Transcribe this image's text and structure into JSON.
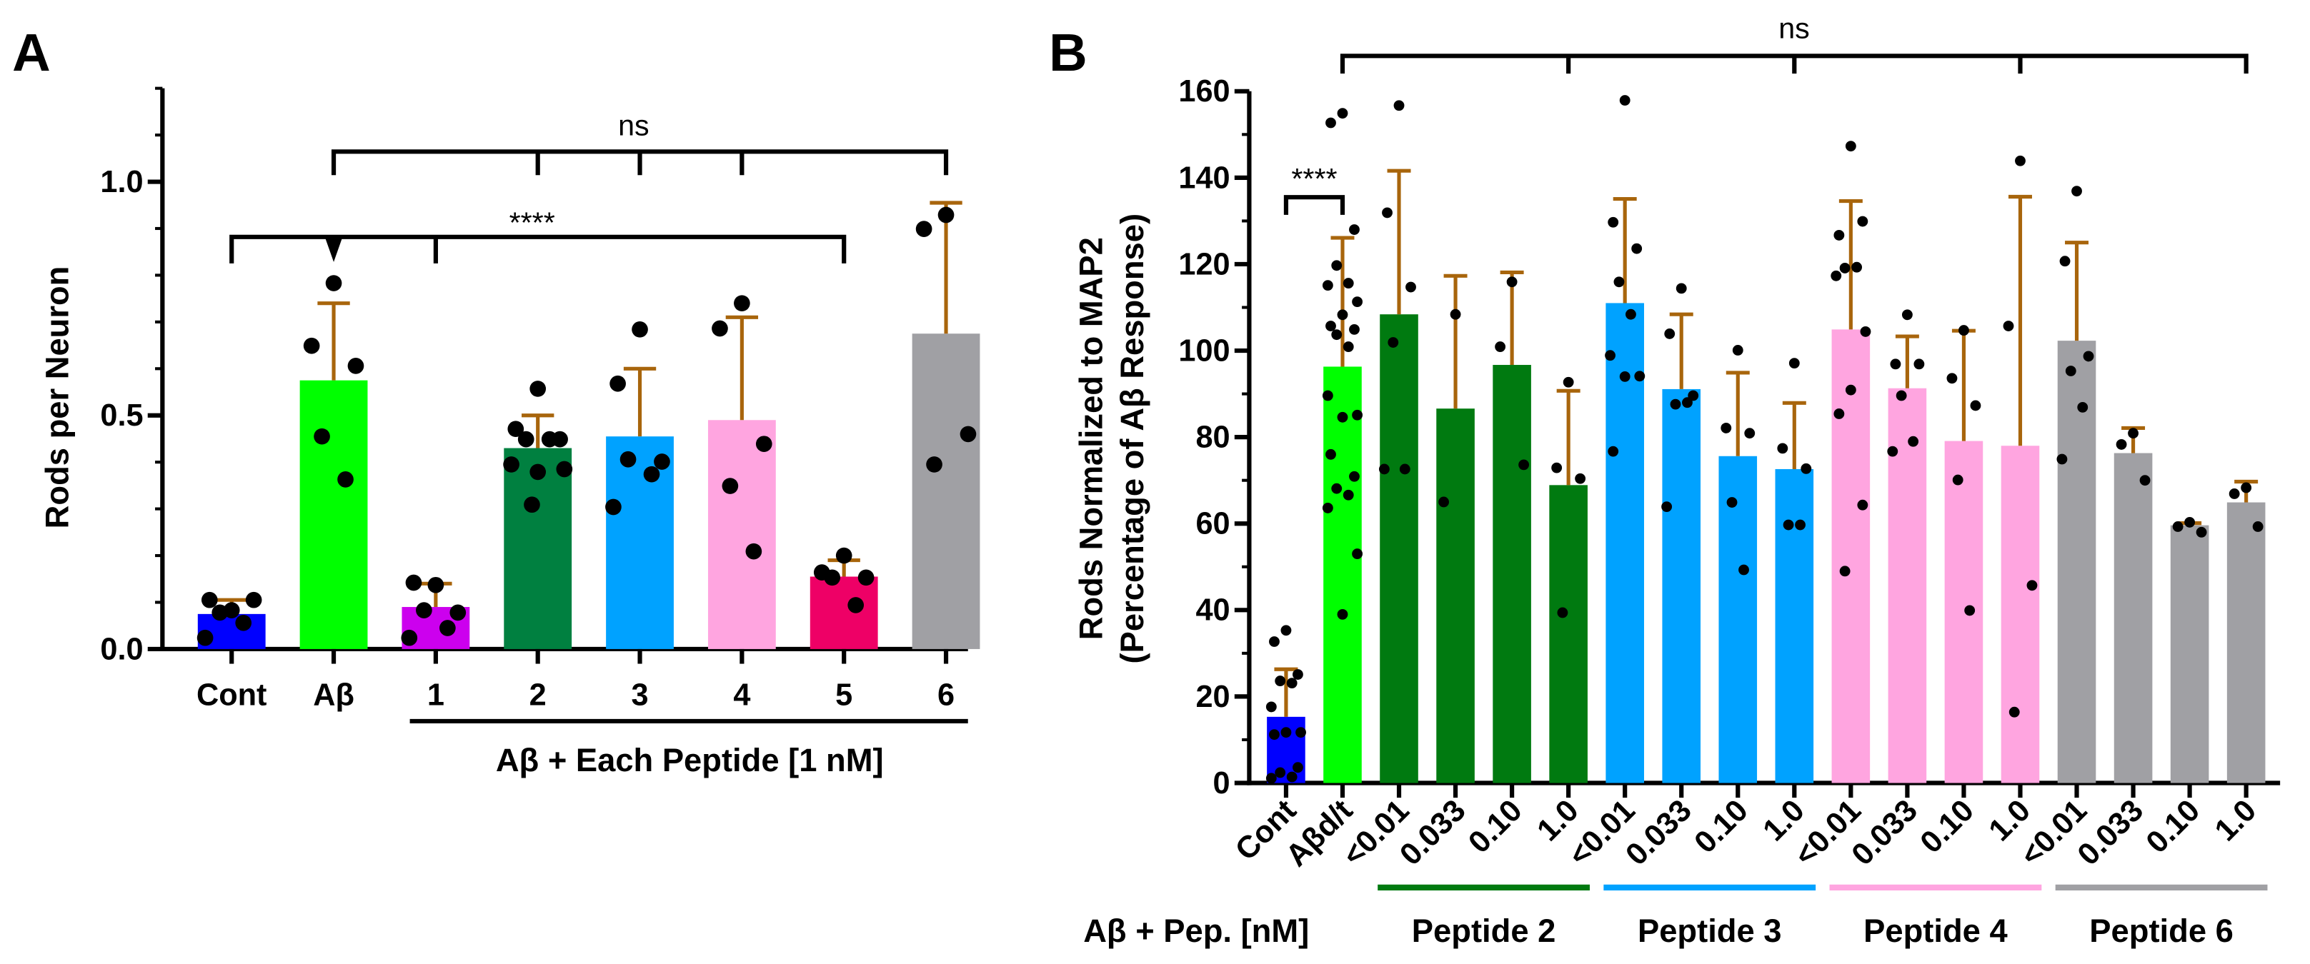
{
  "chart_data": [
    {
      "type": "bar",
      "panel": "A",
      "ylabel": "Rods per Neuron",
      "ylim": [
        0,
        1.2
      ],
      "yticks": [
        "0.0",
        "0.5",
        "1.0"
      ],
      "categories": [
        "Cont",
        "Aβ",
        "1",
        "2",
        "3",
        "4",
        "5",
        "6"
      ],
      "group_label": "Aβ + Each Peptide [1 nM]",
      "colors": [
        "#0000ff",
        "#00ff00",
        "#cc00ee",
        "#008040",
        "#00a2ff",
        "#ffa5e0",
        "#ee0066",
        "#a0a0a4"
      ],
      "errorbar_color": "#a8650c",
      "values": [
        0.075,
        0.575,
        0.09,
        0.43,
        0.455,
        0.49,
        0.155,
        0.675
      ],
      "sd_top": [
        0.105,
        0.74,
        0.14,
        0.5,
        0.6,
        0.71,
        0.19,
        0.955
      ],
      "points": [
        [
          0.083,
          0.105,
          0.105,
          0.078,
          0.056,
          0.024
        ],
        [
          0.783,
          0.649,
          0.606,
          0.455,
          0.363
        ],
        [
          0.137,
          0.142,
          0.078,
          0.083,
          0.045,
          0.024
        ],
        [
          0.557,
          0.471,
          0.449,
          0.449,
          0.449,
          0.395,
          0.385,
          0.379,
          0.309
        ],
        [
          0.684,
          0.568,
          0.401,
          0.406,
          0.374,
          0.304
        ],
        [
          0.74,
          0.686,
          0.439,
          0.349,
          0.209
        ],
        [
          0.2,
          0.164,
          0.153,
          0.153,
          0.094
        ],
        [
          0.929,
          0.899,
          0.46,
          0.395
        ]
      ],
      "significance": [
        {
          "label": "ns",
          "from": "Aβ",
          "to": [
            "2",
            "3",
            "4",
            "6"
          ]
        },
        {
          "label": "****",
          "from": "Cont",
          "to": [
            "Aβ",
            "1",
            "5"
          ]
        }
      ]
    },
    {
      "type": "bar",
      "panel": "B",
      "ylabel": [
        "Rods Normalized to MAP2",
        "(Percentage of Aβ Response)"
      ],
      "ylim": [
        0,
        160
      ],
      "yticks": [
        "0",
        "20",
        "40",
        "60",
        "80",
        "100",
        "120",
        "140",
        "160"
      ],
      "categories": [
        "Cont",
        "Aβd/t",
        "<0.01",
        "0.033",
        "0.10",
        "1.0",
        "<0.01",
        "0.033",
        "0.10",
        "1.0",
        "<0.01",
        "0.033",
        "0.10",
        "1.0",
        "<0.01",
        "0.033",
        "0.10",
        "1.0"
      ],
      "row_label": "Aβ + Pep. [nM]",
      "groups": [
        {
          "label": "Peptide 2",
          "color": "#007a10"
        },
        {
          "label": "Peptide 3",
          "color": "#00a2ff"
        },
        {
          "label": "Peptide 4",
          "color": "#ffa5e0"
        },
        {
          "label": "Peptide 6",
          "color": "#a0a0a4"
        }
      ],
      "colors": [
        "#0000ff",
        "#00ff00",
        "#007a10",
        "#007a10",
        "#007a10",
        "#007a10",
        "#00a2ff",
        "#00a2ff",
        "#00a2ff",
        "#00a2ff",
        "#ffa5e0",
        "#ffa5e0",
        "#ffa5e0",
        "#ffa5e0",
        "#a0a0a4",
        "#a0a0a4",
        "#a0a0a4",
        "#a0a0a4"
      ],
      "errorbar_color": "#a8650c",
      "values": [
        15.3,
        96.3,
        108.4,
        86.6,
        96.7,
        68.9,
        111.0,
        91.1,
        75.6,
        72.6,
        104.9,
        91.3,
        79.1,
        78.0,
        102.3,
        76.3,
        59.6,
        64.9
      ],
      "sd_top": [
        26.3,
        126.1,
        141.6,
        117.3,
        118.1,
        90.7,
        135.1,
        108.4,
        94.9,
        87.9,
        134.6,
        103.3,
        104.6,
        135.6,
        125.0,
        82.1,
        60.1,
        69.7
      ],
      "points": [
        [
          35.3,
          32.7,
          25.1,
          23.6,
          23.1,
          17.6,
          11.7,
          11.7,
          11.2,
          3.6,
          2.4,
          1.4,
          1.1
        ],
        [
          154.9,
          152.7,
          128,
          119.7,
          115.6,
          115.1,
          111.3,
          108.3,
          105.7,
          104.9,
          103.7,
          100.9,
          89.6,
          85.1,
          84.6,
          76,
          70.9,
          68.1,
          66.6,
          63.6,
          53,
          39
        ],
        [
          156.7,
          131.9,
          114.7,
          101.9,
          72.6,
          72.6
        ],
        [
          108.4,
          65
        ],
        [
          115.9,
          100.9,
          73.6
        ],
        [
          92.7,
          72.9,
          70.4,
          39.4
        ],
        [
          157.9,
          129.7,
          123.6,
          115.9,
          108.4,
          98.9,
          94.1,
          94,
          76.7
        ],
        [
          114.4,
          103.9,
          89.6,
          87.6,
          88,
          63.9
        ],
        [
          100.1,
          82.1,
          80.9,
          64.9,
          49.3
        ],
        [
          97.1,
          77.4,
          72.7,
          59.7,
          59.7
        ],
        [
          147.3,
          126.7,
          129.9,
          119.1,
          119.3,
          117.3,
          104.4,
          90.9,
          85.4,
          64.3,
          49
        ],
        [
          108.3,
          96.9,
          96.9,
          89.6,
          79,
          76.7
        ],
        [
          104.7,
          93.6,
          87.3,
          70.1,
          39.9
        ],
        [
          143.9,
          105.7,
          45.7,
          16.4
        ],
        [
          136.9,
          120.7,
          98.7,
          95.3,
          86.9,
          74.9
        ],
        [
          80.9,
          78.3,
          70
        ],
        [
          60.3,
          59.3,
          58
        ],
        [
          68.3,
          66.9,
          59.3
        ]
      ],
      "significance": [
        {
          "label": "****",
          "from": "Cont",
          "to": [
            "Aβd/t"
          ]
        },
        {
          "label": "ns",
          "from": "Aβd/t",
          "to": [
            "1.0 (Peptide 2)",
            "1.0 (Peptide 3)",
            "1.0 (Peptide 4)",
            "1.0 (Peptide 6)"
          ]
        }
      ]
    }
  ]
}
